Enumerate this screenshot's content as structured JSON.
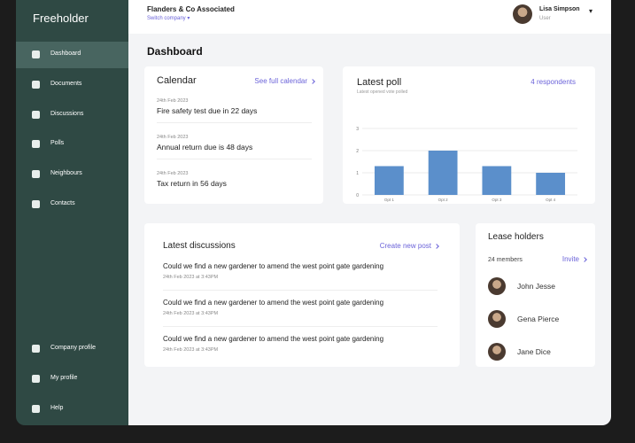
{
  "sidebar": {
    "brand": "Freeholder",
    "nav": [
      "Dashboard",
      "Documents",
      "Discussions",
      "Polls",
      "Neighbours",
      "Contacts"
    ],
    "bottom_nav": [
      "Company profile",
      "My profile",
      "Help"
    ]
  },
  "topbar": {
    "company": "Flanders & Co Associated",
    "switch": "Switch company",
    "user_name": "Lisa Simpson",
    "user_role": "User"
  },
  "page_title": "Dashboard",
  "calendar": {
    "title": "Calendar",
    "link": "See full calendar",
    "events": [
      {
        "date": "24th Feb 2023",
        "text": "Fire safety test due in 22 days"
      },
      {
        "date": "24th Feb 2023",
        "text": "Annual return due is 48 days"
      },
      {
        "date": "24th Feb 2023",
        "text": "Tax return in 56 days"
      }
    ]
  },
  "poll": {
    "title": "Latest poll",
    "subtitle": "Latest opened vote polled",
    "link": "4 respondents",
    "chart_data": {
      "type": "bar",
      "categories": [
        "Opt 1",
        "Opt 2",
        "Opt 3",
        "Opt 4"
      ],
      "values": [
        1.3,
        2,
        1.3,
        1
      ],
      "color": "#5b8fcb",
      "ylim": [
        0,
        3
      ],
      "yticks": [
        0,
        1,
        2,
        3
      ],
      "grid": true
    }
  },
  "discussions": {
    "title": "Latest discussions",
    "link": "Create new post",
    "posts": [
      {
        "title": "Could we find a new gardener to amend the west point gate gardening",
        "date": "24th Feb 2023 at 3:43PM"
      },
      {
        "title": "Could we find a new gardener to amend the west point gate gardening",
        "date": "24th Feb 2023 at 3:43PM"
      },
      {
        "title": "Could we find a new gardener to amend the west point gate gardening",
        "date": "24th Feb 2023 at 3:43PM"
      }
    ]
  },
  "lease_holders": {
    "title": "Lease holders",
    "count": "24 members",
    "link": "Invite",
    "members": [
      "John Jesse",
      "Gena Pierce",
      "Jane Dice"
    ]
  }
}
